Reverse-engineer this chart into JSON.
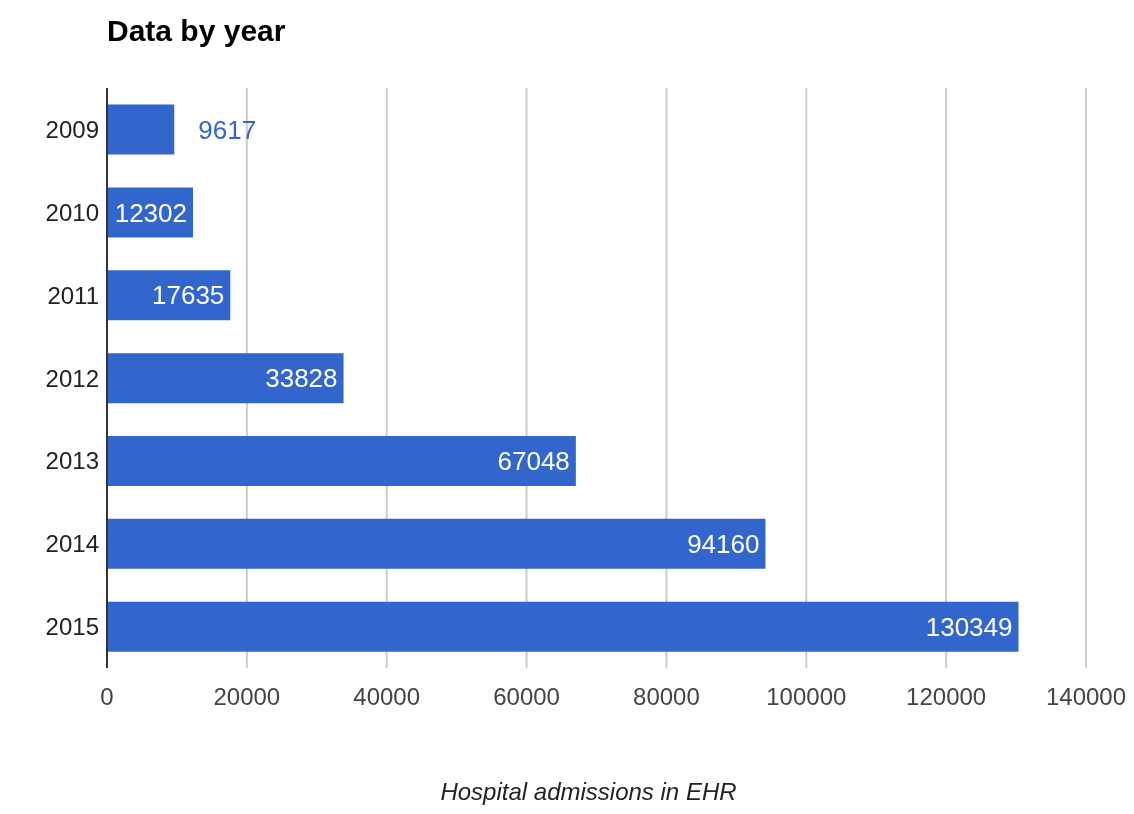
{
  "chart_data": {
    "type": "bar",
    "orientation": "horizontal",
    "title": "Data by year",
    "xlabel": "Hospital admissions in EHR",
    "categories": [
      "2009",
      "2010",
      "2011",
      "2012",
      "2013",
      "2014",
      "2015"
    ],
    "values": [
      9617,
      12302,
      17635,
      33828,
      67048,
      94160,
      130349
    ],
    "color": "#3366cc",
    "xlim": [
      0,
      140000
    ],
    "xticks": [
      0,
      20000,
      40000,
      60000,
      80000,
      100000,
      120000,
      140000
    ],
    "grid": "x",
    "legend": false,
    "data_labels": true
  }
}
